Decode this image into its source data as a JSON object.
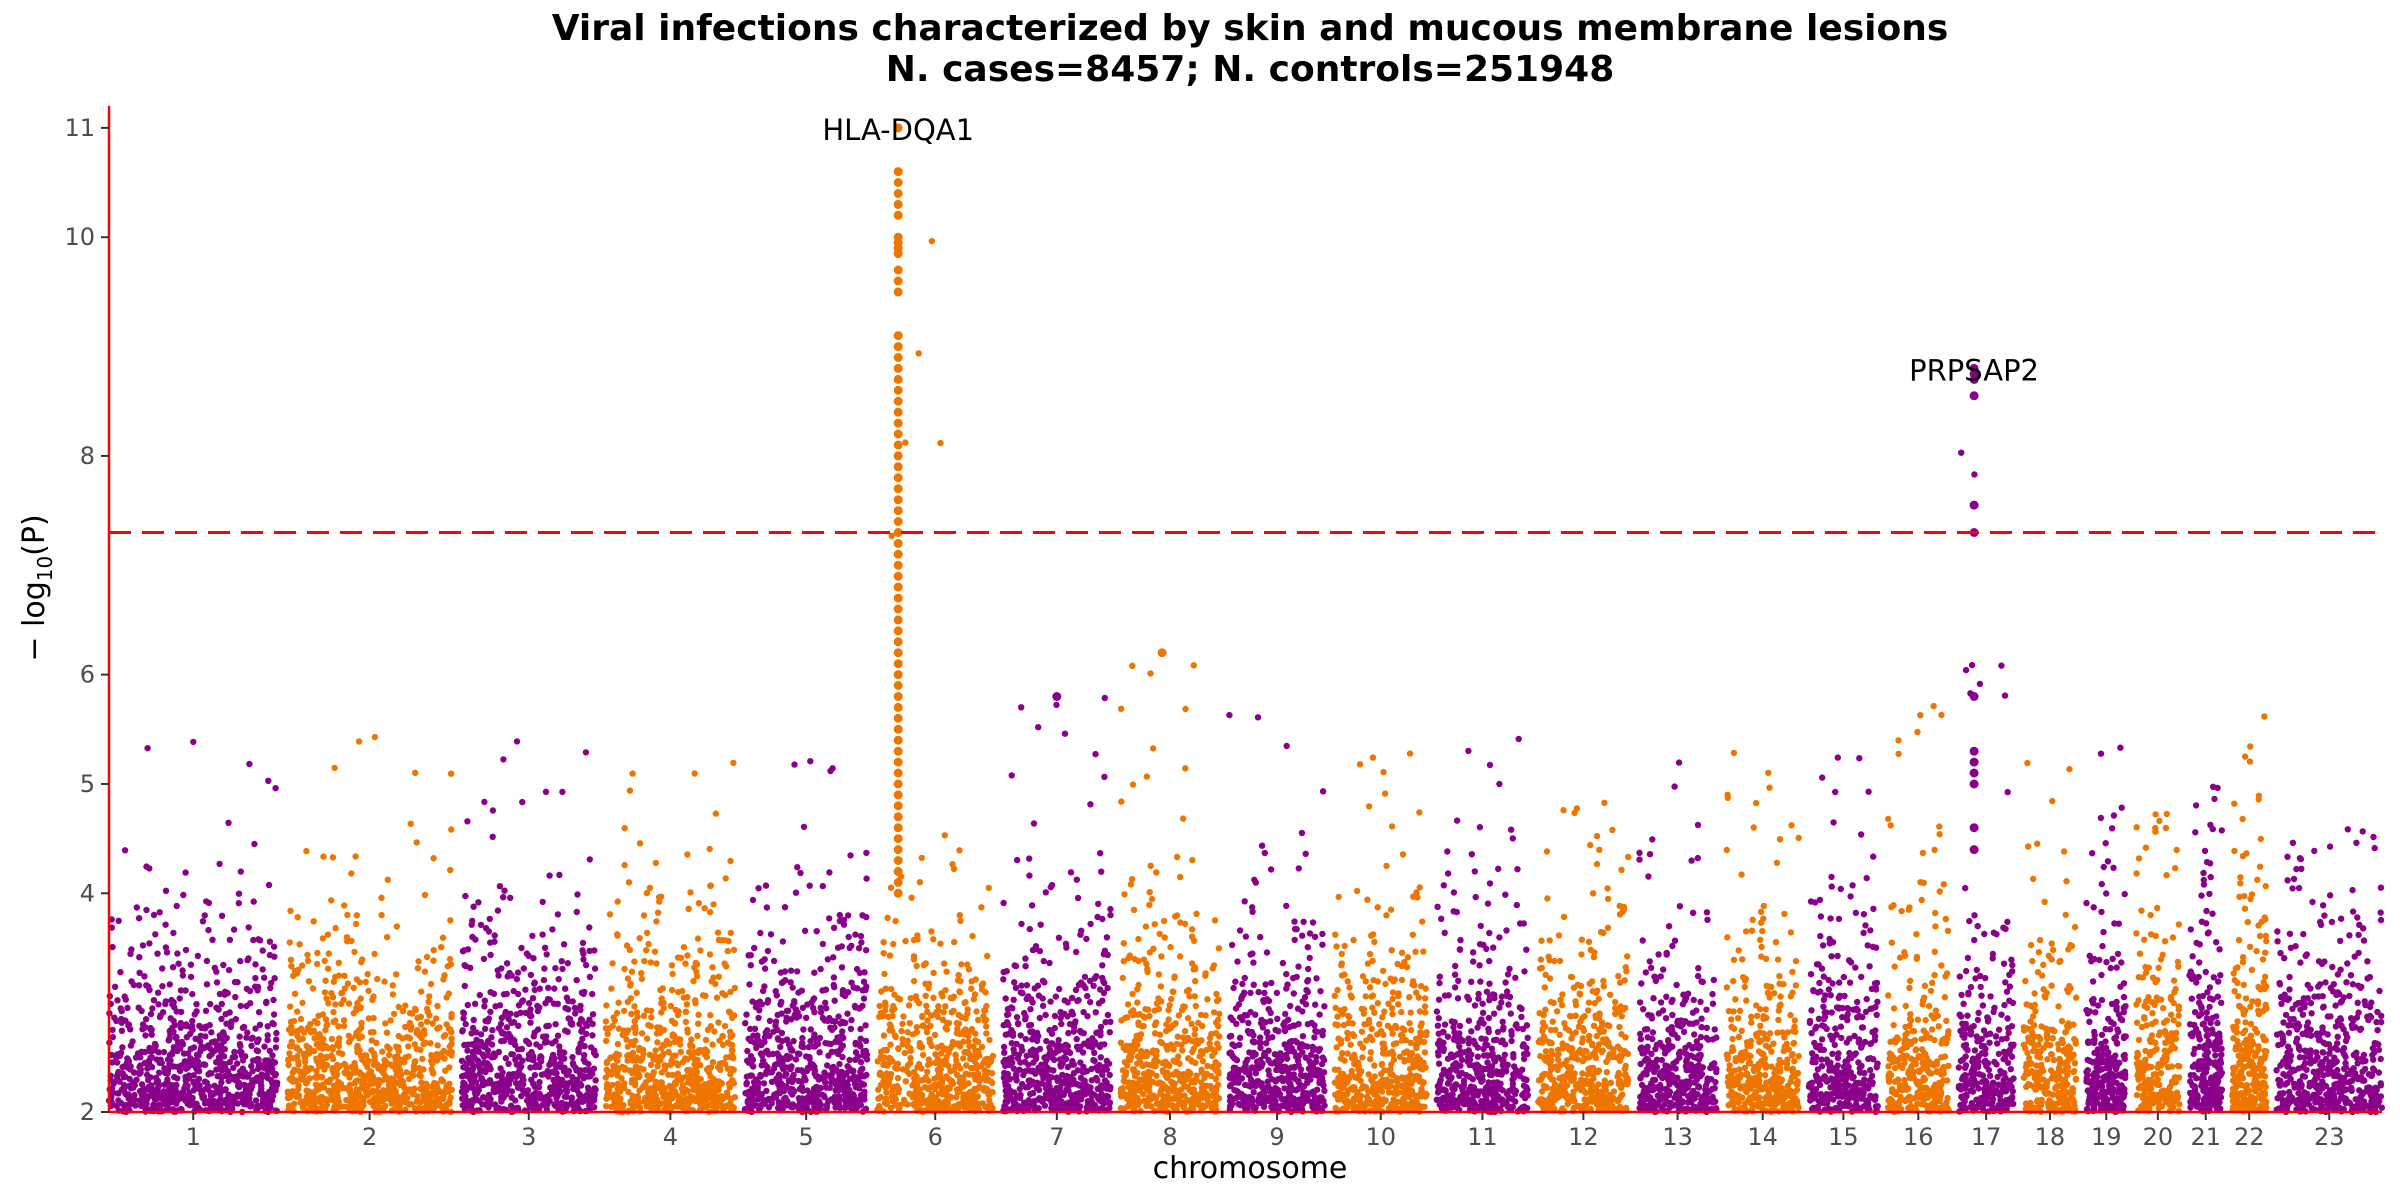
{
  "chart_data": {
    "type": "scatter",
    "subtype": "manhattan",
    "title": "Viral infections characterized by skin and mucous membrane lesions",
    "subtitle": "N. cases=8457; N. controls=251948",
    "xlabel": "chromosome",
    "ylabel_prefix": "− log",
    "ylabel_sub": "10",
    "ylabel_suffix": "(P)",
    "ylim": [
      2,
      11.2
    ],
    "yticks": [
      2,
      4,
      5,
      6,
      8,
      10,
      11
    ],
    "ytick_labels": [
      "2",
      "4",
      "5",
      "6",
      "8",
      "10",
      "11"
    ],
    "grid": false,
    "significance_threshold": 7.3,
    "colors": {
      "odd": "#8b008b",
      "even": "#ee7600",
      "threshold": "#ff0000",
      "axis": "#ff0000"
    },
    "chromosomes": [
      "1",
      "2",
      "3",
      "4",
      "5",
      "6",
      "7",
      "8",
      "9",
      "10",
      "11",
      "12",
      "13",
      "14",
      "15",
      "16",
      "17",
      "18",
      "19",
      "20",
      "21",
      "22",
      "23"
    ],
    "chromosome_sizes": [
      249,
      243,
      198,
      191,
      181,
      171,
      159,
      146,
      141,
      136,
      135,
      134,
      115,
      107,
      102,
      90,
      81,
      78,
      59,
      64,
      48,
      51,
      156
    ],
    "chromosome_max_values": [
      5.4,
      5.5,
      5.5,
      5.3,
      5.4,
      11.0,
      5.8,
      6.2,
      5.7,
      5.3,
      5.7,
      5.1,
      5.3,
      5.3,
      5.4,
      5.8,
      8.8,
      5.6,
      5.5,
      4.8,
      5.0,
      5.8,
      4.6
    ],
    "annotations": [
      {
        "label": "HLA-DQA1",
        "chromosome": "6",
        "y": 11.0
      },
      {
        "label": "PRPSAP2",
        "chromosome": "17",
        "y": 8.8
      }
    ],
    "peaks": [
      {
        "chromosome": "6",
        "position": 0.18,
        "values": [
          11.0,
          10.6,
          10.5,
          10.4,
          10.3,
          10.2,
          10.0,
          9.95,
          9.9,
          9.85,
          9.7,
          9.6,
          9.5,
          9.1,
          9.0,
          8.9,
          8.8,
          8.7,
          8.6,
          8.5,
          8.4,
          8.3,
          8.2,
          8.1,
          8.0,
          7.9,
          7.8,
          7.7,
          7.6,
          7.5,
          7.4,
          7.3,
          7.2,
          7.1,
          7.0,
          6.9,
          6.8,
          6.7,
          6.6,
          6.5,
          6.4,
          6.3,
          6.2,
          6.1,
          6.0,
          5.9,
          5.8,
          5.7,
          5.6,
          5.5,
          5.4,
          5.3,
          5.2,
          5.1,
          5.0,
          4.9,
          4.8,
          4.7,
          4.6,
          4.5,
          4.4,
          4.3,
          4.2,
          4.1,
          4.0
        ]
      },
      {
        "chromosome": "17",
        "position": 0.28,
        "values": [
          8.8,
          8.75,
          8.7,
          8.55,
          7.55,
          7.3,
          5.8,
          5.3,
          5.2,
          5.1,
          5.0,
          4.6,
          4.4
        ]
      },
      {
        "chromosome": "8",
        "position": 0.42,
        "values": [
          6.2
        ]
      },
      {
        "chromosome": "7",
        "position": 0.5,
        "values": [
          5.8
        ]
      }
    ]
  }
}
